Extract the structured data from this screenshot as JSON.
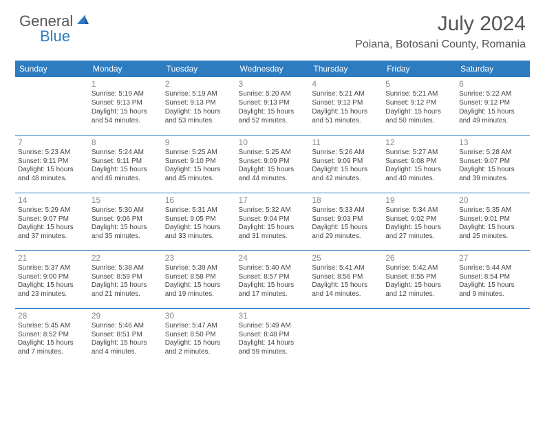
{
  "logo": {
    "text1": "General",
    "text2": "Blue",
    "text1_color": "#555555",
    "text2_color": "#2e7cc0"
  },
  "title": "July 2024",
  "location": "Poiana, Botosani County, Romania",
  "header_bg": "#2e7cc0",
  "header_fg": "#ffffff",
  "border_color": "#2e7cc0",
  "day_headers": [
    "Sunday",
    "Monday",
    "Tuesday",
    "Wednesday",
    "Thursday",
    "Friday",
    "Saturday"
  ],
  "weeks": [
    [
      null,
      {
        "n": "1",
        "sr": "5:19 AM",
        "ss": "9:13 PM",
        "dl": "15 hours and 54 minutes."
      },
      {
        "n": "2",
        "sr": "5:19 AM",
        "ss": "9:13 PM",
        "dl": "15 hours and 53 minutes."
      },
      {
        "n": "3",
        "sr": "5:20 AM",
        "ss": "9:13 PM",
        "dl": "15 hours and 52 minutes."
      },
      {
        "n": "4",
        "sr": "5:21 AM",
        "ss": "9:12 PM",
        "dl": "15 hours and 51 minutes."
      },
      {
        "n": "5",
        "sr": "5:21 AM",
        "ss": "9:12 PM",
        "dl": "15 hours and 50 minutes."
      },
      {
        "n": "6",
        "sr": "5:22 AM",
        "ss": "9:12 PM",
        "dl": "15 hours and 49 minutes."
      }
    ],
    [
      {
        "n": "7",
        "sr": "5:23 AM",
        "ss": "9:11 PM",
        "dl": "15 hours and 48 minutes."
      },
      {
        "n": "8",
        "sr": "5:24 AM",
        "ss": "9:11 PM",
        "dl": "15 hours and 46 minutes."
      },
      {
        "n": "9",
        "sr": "5:25 AM",
        "ss": "9:10 PM",
        "dl": "15 hours and 45 minutes."
      },
      {
        "n": "10",
        "sr": "5:25 AM",
        "ss": "9:09 PM",
        "dl": "15 hours and 44 minutes."
      },
      {
        "n": "11",
        "sr": "5:26 AM",
        "ss": "9:09 PM",
        "dl": "15 hours and 42 minutes."
      },
      {
        "n": "12",
        "sr": "5:27 AM",
        "ss": "9:08 PM",
        "dl": "15 hours and 40 minutes."
      },
      {
        "n": "13",
        "sr": "5:28 AM",
        "ss": "9:07 PM",
        "dl": "15 hours and 39 minutes."
      }
    ],
    [
      {
        "n": "14",
        "sr": "5:29 AM",
        "ss": "9:07 PM",
        "dl": "15 hours and 37 minutes."
      },
      {
        "n": "15",
        "sr": "5:30 AM",
        "ss": "9:06 PM",
        "dl": "15 hours and 35 minutes."
      },
      {
        "n": "16",
        "sr": "5:31 AM",
        "ss": "9:05 PM",
        "dl": "15 hours and 33 minutes."
      },
      {
        "n": "17",
        "sr": "5:32 AM",
        "ss": "9:04 PM",
        "dl": "15 hours and 31 minutes."
      },
      {
        "n": "18",
        "sr": "5:33 AM",
        "ss": "9:03 PM",
        "dl": "15 hours and 29 minutes."
      },
      {
        "n": "19",
        "sr": "5:34 AM",
        "ss": "9:02 PM",
        "dl": "15 hours and 27 minutes."
      },
      {
        "n": "20",
        "sr": "5:35 AM",
        "ss": "9:01 PM",
        "dl": "15 hours and 25 minutes."
      }
    ],
    [
      {
        "n": "21",
        "sr": "5:37 AM",
        "ss": "9:00 PM",
        "dl": "15 hours and 23 minutes."
      },
      {
        "n": "22",
        "sr": "5:38 AM",
        "ss": "8:59 PM",
        "dl": "15 hours and 21 minutes."
      },
      {
        "n": "23",
        "sr": "5:39 AM",
        "ss": "8:58 PM",
        "dl": "15 hours and 19 minutes."
      },
      {
        "n": "24",
        "sr": "5:40 AM",
        "ss": "8:57 PM",
        "dl": "15 hours and 17 minutes."
      },
      {
        "n": "25",
        "sr": "5:41 AM",
        "ss": "8:56 PM",
        "dl": "15 hours and 14 minutes."
      },
      {
        "n": "26",
        "sr": "5:42 AM",
        "ss": "8:55 PM",
        "dl": "15 hours and 12 minutes."
      },
      {
        "n": "27",
        "sr": "5:44 AM",
        "ss": "8:54 PM",
        "dl": "15 hours and 9 minutes."
      }
    ],
    [
      {
        "n": "28",
        "sr": "5:45 AM",
        "ss": "8:52 PM",
        "dl": "15 hours and 7 minutes."
      },
      {
        "n": "29",
        "sr": "5:46 AM",
        "ss": "8:51 PM",
        "dl": "15 hours and 4 minutes."
      },
      {
        "n": "30",
        "sr": "5:47 AM",
        "ss": "8:50 PM",
        "dl": "15 hours and 2 minutes."
      },
      {
        "n": "31",
        "sr": "5:49 AM",
        "ss": "8:48 PM",
        "dl": "14 hours and 59 minutes."
      },
      null,
      null,
      null
    ]
  ],
  "labels": {
    "sunrise": "Sunrise:",
    "sunset": "Sunset:",
    "daylight": "Daylight:"
  }
}
